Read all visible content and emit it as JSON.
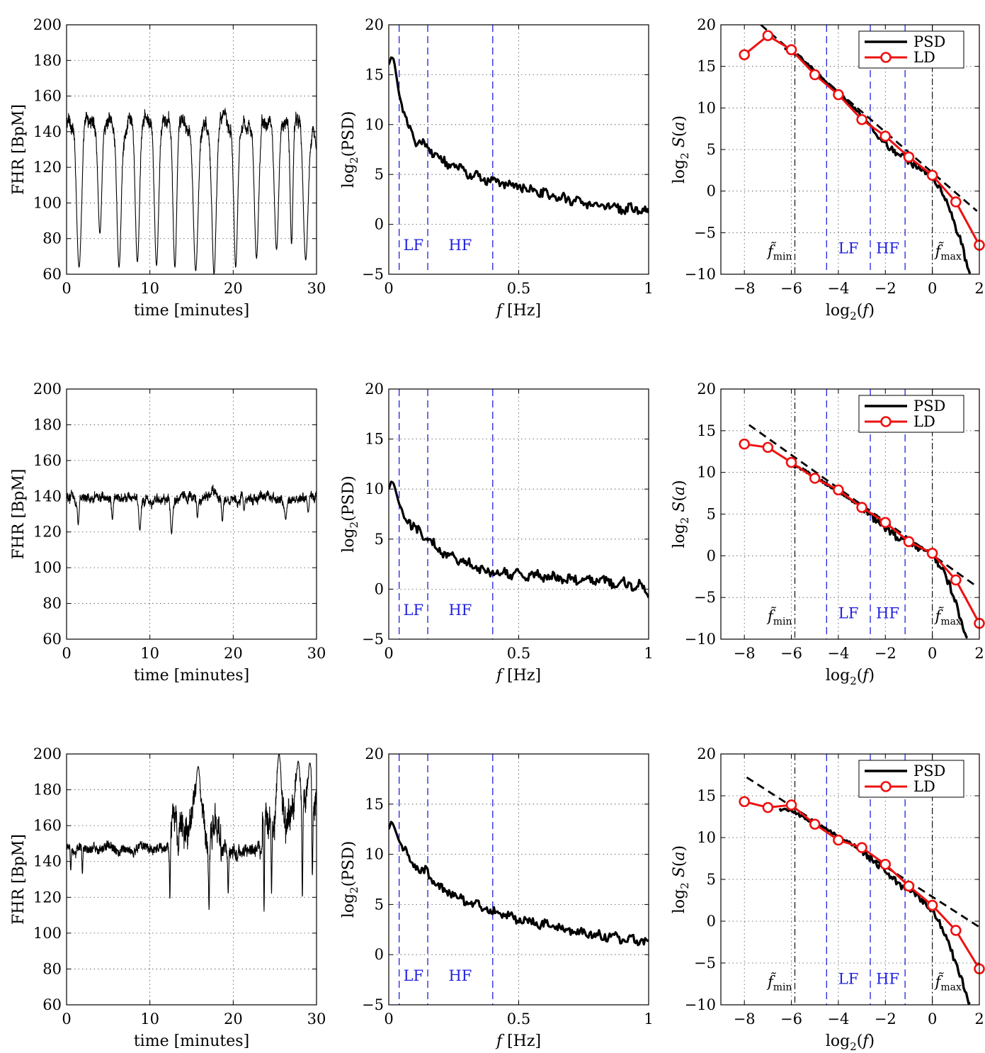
{
  "figure": {
    "panel_axis_labels": {
      "fhr": {
        "xlabel": "time [minutes]",
        "ylabel": "FHR [BpM]"
      },
      "psd": {
        "xlabel_italic": "f",
        "xlabel_rest": " [Hz]",
        "ylabel_base": "log",
        "ylabel_sub": "2",
        "ylabel_rest": "(PSD)"
      },
      "ld": {
        "xlabel_base": "log",
        "xlabel_sub": "2",
        "xlabel_rest": "(f)",
        "ylabel_base": "log",
        "ylabel_sub": "2",
        "ylabel_rest": " S(a)"
      }
    },
    "band_labels": {
      "lf": "LF",
      "hf": "HF"
    },
    "cut_labels": {
      "fmin_base": "f̃",
      "fmin_sub": "min",
      "fmax_base": "f̃",
      "fmax_sub": "max"
    },
    "legend": {
      "psd": "PSD",
      "ld": "LD"
    },
    "colors": {
      "ld": "#ee1111",
      "bands": "#2020e0",
      "psd": "#000000"
    }
  },
  "chart_data": [
    {
      "row": 1,
      "type": "line",
      "xlabel": "time [minutes]",
      "ylabel": "FHR [BpM]",
      "xlim": [
        0,
        30
      ],
      "ylim": [
        60,
        200
      ],
      "xticks": [
        0,
        10,
        20,
        30
      ],
      "yticks": [
        60,
        80,
        100,
        120,
        140,
        160,
        180,
        200
      ],
      "grid": true,
      "baseline": 145,
      "variability": 6,
      "spread": 3,
      "decelerations": [
        [
          1.5,
          64,
          0.9
        ],
        [
          4.0,
          83,
          0.7
        ],
        [
          6.3,
          64,
          0.8
        ],
        [
          8.5,
          67,
          0.8
        ],
        [
          10.8,
          65,
          0.8
        ],
        [
          13.0,
          64,
          0.7
        ],
        [
          15.5,
          62,
          0.9
        ],
        [
          17.7,
          60,
          0.8
        ],
        [
          20.3,
          64,
          0.7
        ],
        [
          22.8,
          69,
          0.8
        ],
        [
          25.2,
          74,
          0.8
        ],
        [
          27.0,
          77,
          0.5
        ],
        [
          28.7,
          68,
          0.9
        ],
        [
          30.0,
          130,
          0.5
        ]
      ]
    },
    {
      "row": 1,
      "type": "line",
      "xlabel": "f [Hz]",
      "ylabel": "log2(PSD)",
      "xlim": [
        0,
        1
      ],
      "ylim": [
        -5,
        20
      ],
      "xticks": [
        0,
        0.5,
        1
      ],
      "yticks": [
        -5,
        0,
        5,
        10,
        15,
        20
      ],
      "grid": true,
      "band_edges": [
        0.04,
        0.15,
        0.4
      ],
      "knots": [
        [
          0.0,
          16.0
        ],
        [
          0.01,
          16.8
        ],
        [
          0.02,
          16.5
        ],
        [
          0.04,
          13.0
        ],
        [
          0.07,
          10.0
        ],
        [
          0.1,
          8.5
        ],
        [
          0.15,
          7.9
        ],
        [
          0.2,
          6.4
        ],
        [
          0.25,
          5.8
        ],
        [
          0.3,
          5.2
        ],
        [
          0.35,
          4.6
        ],
        [
          0.4,
          4.2
        ],
        [
          0.5,
          3.8
        ],
        [
          0.6,
          3.0
        ],
        [
          0.7,
          2.4
        ],
        [
          0.8,
          1.9
        ],
        [
          0.9,
          1.6
        ],
        [
          1.0,
          1.3
        ]
      ]
    },
    {
      "row": 1,
      "type": "line",
      "xlabel": "log2(f)",
      "ylabel": "log2 S(a)",
      "xlim": [
        -9,
        2
      ],
      "ylim": [
        -10,
        20
      ],
      "xticks": [
        -8,
        -6,
        -4,
        -2,
        0,
        2
      ],
      "yticks": [
        -10,
        -5,
        0,
        5,
        10,
        15,
        20
      ],
      "grid": true,
      "cutoffs": [
        -5.85,
        0
      ],
      "band_edges": [
        -4.5,
        -2.64,
        -1.16
      ],
      "series": [
        {
          "name": "PSD",
          "x": [
            -6.3,
            -5.8,
            -5.2,
            -4.5,
            -3.8,
            -3.0,
            -2.4,
            -1.6,
            -1.0,
            -0.4,
            0.0,
            0.4,
            0.8,
            1.2,
            1.6
          ],
          "y": [
            17.0,
            16.5,
            15.0,
            13.0,
            11.3,
            9.0,
            6.8,
            4.8,
            3.6,
            2.4,
            1.8,
            0.0,
            -2.5,
            -6.0,
            -10.0
          ]
        },
        {
          "name": "LD",
          "x": [
            -8,
            -7,
            -6,
            -5,
            -4,
            -3,
            -2,
            -1,
            0,
            1,
            2
          ],
          "y": [
            16.4,
            18.7,
            17.0,
            14.0,
            11.6,
            8.6,
            6.6,
            4.1,
            1.9,
            -1.3,
            -6.5
          ]
        }
      ],
      "fit": {
        "x": [
          -7.3,
          1.9
        ],
        "y": [
          20.0,
          -2.4
        ]
      }
    },
    {
      "row": 2,
      "type": "line",
      "xlabel": "time [minutes]",
      "ylabel": "FHR [BpM]",
      "xlim": [
        0,
        30
      ],
      "ylim": [
        60,
        200
      ],
      "xticks": [
        0,
        10,
        20,
        30
      ],
      "yticks": [
        60,
        80,
        100,
        120,
        140,
        160,
        180,
        200
      ],
      "grid": true,
      "baseline": 139,
      "variability": 3.5,
      "spread": 2,
      "decelerations": [
        [
          1.4,
          124,
          0.3
        ],
        [
          5.5,
          127,
          0.3
        ],
        [
          8.8,
          121,
          0.4
        ],
        [
          12.6,
          119,
          0.4
        ],
        [
          15.7,
          128,
          0.3
        ],
        [
          18.7,
          126,
          0.3
        ],
        [
          21.3,
          132,
          0.3
        ],
        [
          26.3,
          127,
          0.4
        ],
        [
          29.0,
          131,
          0.3
        ]
      ]
    },
    {
      "row": 2,
      "type": "line",
      "xlabel": "f [Hz]",
      "ylabel": "log2(PSD)",
      "xlim": [
        0,
        1
      ],
      "ylim": [
        -5,
        20
      ],
      "xticks": [
        0,
        0.5,
        1
      ],
      "yticks": [
        -5,
        0,
        5,
        10,
        15,
        20
      ],
      "grid": true,
      "band_edges": [
        0.04,
        0.15,
        0.4
      ],
      "knots": [
        [
          0.0,
          10.0
        ],
        [
          0.01,
          10.8
        ],
        [
          0.02,
          10.5
        ],
        [
          0.04,
          8.5
        ],
        [
          0.07,
          7.0
        ],
        [
          0.1,
          6.0
        ],
        [
          0.15,
          5.0
        ],
        [
          0.2,
          3.8
        ],
        [
          0.25,
          3.1
        ],
        [
          0.3,
          2.6
        ],
        [
          0.35,
          2.0
        ],
        [
          0.4,
          1.7
        ],
        [
          0.5,
          1.5
        ],
        [
          0.6,
          1.3
        ],
        [
          0.7,
          1.0
        ],
        [
          0.8,
          0.8
        ],
        [
          0.9,
          0.6
        ],
        [
          0.97,
          0.3
        ],
        [
          1.0,
          -0.5
        ]
      ]
    },
    {
      "row": 2,
      "type": "line",
      "xlabel": "log2(f)",
      "ylabel": "log2 S(a)",
      "xlim": [
        -9,
        2
      ],
      "ylim": [
        -10,
        20
      ],
      "xticks": [
        -8,
        -6,
        -4,
        -2,
        0,
        2
      ],
      "yticks": [
        -10,
        -5,
        0,
        5,
        10,
        15,
        20
      ],
      "grid": true,
      "cutoffs": [
        -5.85,
        0
      ],
      "band_edges": [
        -4.5,
        -2.64,
        -1.16
      ],
      "series": [
        {
          "name": "PSD",
          "x": [
            -6.0,
            -5.6,
            -5.0,
            -4.4,
            -3.8,
            -3.1,
            -2.5,
            -1.9,
            -1.3,
            -0.8,
            -0.3,
            0.0,
            0.4,
            0.8,
            1.2,
            1.5
          ],
          "y": [
            10.8,
            10.5,
            9.5,
            8.4,
            7.4,
            6.0,
            4.5,
            3.0,
            1.9,
            1.2,
            0.6,
            0.1,
            -1.5,
            -4.0,
            -7.5,
            -10.0
          ]
        },
        {
          "name": "LD",
          "x": [
            -8,
            -7,
            -6,
            -5,
            -4,
            -3,
            -2,
            -1,
            0,
            1,
            2
          ],
          "y": [
            13.4,
            13.0,
            11.2,
            9.3,
            7.9,
            5.8,
            4.0,
            1.7,
            0.3,
            -2.9,
            -8.1
          ]
        }
      ],
      "fit": {
        "x": [
          -7.8,
          1.9
        ],
        "y": [
          15.7,
          -3.7
        ]
      }
    },
    {
      "row": 3,
      "type": "line",
      "xlabel": "time [minutes]",
      "ylabel": "FHR [BpM]",
      "xlim": [
        0,
        30
      ],
      "ylim": [
        60,
        200
      ],
      "xticks": [
        0,
        10,
        20,
        30
      ],
      "yticks": [
        60,
        80,
        100,
        120,
        140,
        160,
        180,
        200
      ],
      "grid": true,
      "segments": [
        {
          "from": 0.0,
          "to": 12.3,
          "baseline": 147,
          "variability": 3,
          "spread": 2
        },
        {
          "from": 12.3,
          "to": 18.5,
          "baseline": 158,
          "variability": 15,
          "spread": 6
        },
        {
          "from": 18.5,
          "to": 23.5,
          "baseline": 148,
          "variability": 5,
          "spread": 3
        },
        {
          "from": 23.5,
          "to": 30.0,
          "baseline": 165,
          "variability": 15,
          "spread": 7
        }
      ],
      "peaks": [
        [
          15.8,
          193
        ],
        [
          25.5,
          200
        ],
        [
          27.8,
          196
        ],
        [
          29.2,
          195
        ]
      ],
      "spikes": [
        [
          0.5,
          135
        ],
        [
          1.9,
          133
        ],
        [
          12.4,
          119
        ],
        [
          17.1,
          113
        ],
        [
          19.4,
          122
        ],
        [
          23.7,
          112
        ],
        [
          24.6,
          122
        ],
        [
          28.3,
          120
        ],
        [
          29.5,
          132
        ]
      ]
    },
    {
      "row": 3,
      "type": "line",
      "xlabel": "f [Hz]",
      "ylabel": "log2(PSD)",
      "xlim": [
        0,
        1
      ],
      "ylim": [
        -5,
        20
      ],
      "xticks": [
        0,
        0.5,
        1
      ],
      "yticks": [
        -5,
        0,
        5,
        10,
        15,
        20
      ],
      "grid": true,
      "band_edges": [
        0.04,
        0.15,
        0.4
      ],
      "knots": [
        [
          0.0,
          12.5
        ],
        [
          0.01,
          13.3
        ],
        [
          0.02,
          12.8
        ],
        [
          0.04,
          11.3
        ],
        [
          0.07,
          10.0
        ],
        [
          0.1,
          8.8
        ],
        [
          0.15,
          8.1
        ],
        [
          0.2,
          6.5
        ],
        [
          0.25,
          6.0
        ],
        [
          0.3,
          5.2
        ],
        [
          0.35,
          4.8
        ],
        [
          0.4,
          4.2
        ],
        [
          0.5,
          3.5
        ],
        [
          0.6,
          3.0
        ],
        [
          0.7,
          2.4
        ],
        [
          0.8,
          2.0
        ],
        [
          0.9,
          1.6
        ],
        [
          1.0,
          1.2
        ]
      ]
    },
    {
      "row": 3,
      "type": "line",
      "xlabel": "log2(f)",
      "ylabel": "log2 S(a)",
      "xlim": [
        -9,
        2
      ],
      "ylim": [
        -10,
        20
      ],
      "xticks": [
        -8,
        -6,
        -4,
        -2,
        0,
        2
      ],
      "yticks": [
        -10,
        -5,
        0,
        5,
        10,
        15,
        20
      ],
      "grid": true,
      "cutoffs": [
        -5.85,
        0
      ],
      "band_edges": [
        -4.5,
        -2.64,
        -1.16
      ],
      "series": [
        {
          "name": "PSD",
          "x": [
            -6.5,
            -6.0,
            -5.4,
            -4.8,
            -4.2,
            -3.6,
            -3.0,
            -2.4,
            -1.8,
            -1.2,
            -0.6,
            -0.2,
            0.0,
            0.4,
            0.8,
            1.2,
            1.6
          ],
          "y": [
            13.4,
            13.2,
            12.3,
            11.4,
            10.5,
            9.6,
            8.4,
            7.0,
            5.4,
            4.0,
            2.9,
            2.0,
            1.4,
            -0.8,
            -3.5,
            -6.6,
            -10.0
          ]
        },
        {
          "name": "LD",
          "x": [
            -8,
            -7,
            -6,
            -5,
            -4,
            -3,
            -2,
            -1,
            0,
            1,
            2
          ],
          "y": [
            14.3,
            13.6,
            13.9,
            11.6,
            9.7,
            8.8,
            6.8,
            4.2,
            1.9,
            -1.1,
            -5.7
          ]
        }
      ],
      "fit": {
        "x": [
          -7.9,
          2.0
        ],
        "y": [
          17.2,
          -0.7
        ]
      }
    }
  ]
}
